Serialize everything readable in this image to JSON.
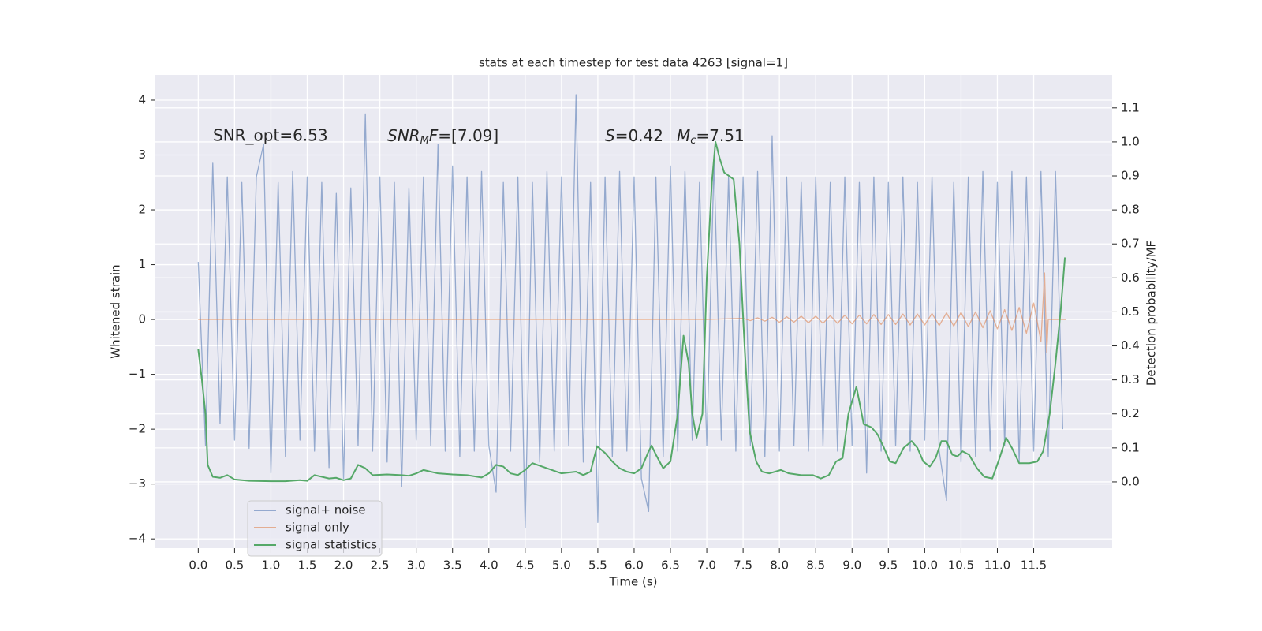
{
  "chart_data": {
    "type": "line",
    "title": "stats at each timestep for test data 4263 [signal=1]",
    "xlabel": "Time (s)",
    "ylabel": "Whitened strain",
    "y2label": "Detection probability/MF",
    "annotations": [
      "SNR_opt=6.53",
      [
        "SNR",
        "M",
        "F",
        "=[7.09]"
      ],
      [
        "S",
        "=0.42"
      ],
      [
        "M",
        "c",
        "=7.51"
      ]
    ],
    "xlim": [
      -0.59,
      12.58
    ],
    "ylim": [
      -4.17,
      4.46
    ],
    "y2lim": [
      -0.195,
      1.197
    ],
    "xticks": [
      {
        "value": 0,
        "label": "0.0"
      },
      0.5,
      {
        "value": 1,
        "label": "1.0"
      },
      1.5,
      {
        "value": 2,
        "label": "2.0"
      },
      2.5,
      {
        "value": 3,
        "label": "3.0"
      },
      3.5,
      {
        "value": 4,
        "label": "4.0"
      },
      4.5,
      {
        "value": 5,
        "label": "5.0"
      },
      5.5,
      {
        "value": 6,
        "label": "6.0"
      },
      6.5,
      {
        "value": 7,
        "label": "7.0"
      },
      7.5,
      {
        "value": 8,
        "label": "8.0"
      },
      8.5,
      {
        "value": 9,
        "label": "9.0"
      },
      9.5,
      {
        "value": 10,
        "label": "10.0"
      },
      10.5,
      {
        "value": 11,
        "label": "11.0"
      },
      11.5
    ],
    "yticks": [
      {
        "value": -4,
        "label": "−4"
      },
      {
        "value": -3,
        "label": "−3"
      },
      {
        "value": -2,
        "label": "−2"
      },
      {
        "value": -1,
        "label": "−1"
      },
      0,
      1,
      2,
      3,
      4
    ],
    "y2ticks": [
      {
        "value": 0,
        "label": "0.0"
      },
      0.1,
      0.2,
      0.3,
      0.4,
      0.5,
      0.6,
      0.7,
      0.8,
      0.9,
      {
        "value": 1,
        "label": "1.0"
      },
      1.1
    ],
    "grid": true,
    "legend": "lower left",
    "series": [
      {
        "name": "signal+ noise",
        "color": "#4c72b0",
        "x": [
          0.0,
          0.1,
          0.2,
          0.3,
          0.4,
          0.5,
          0.6,
          0.7,
          0.8,
          0.9,
          1.0,
          1.1,
          1.2,
          1.3,
          1.4,
          1.5,
          1.6,
          1.7,
          1.8,
          1.9,
          2.0,
          2.1,
          2.2,
          2.3,
          2.4,
          2.5,
          2.6,
          2.7,
          2.8,
          2.9,
          3.0,
          3.1,
          3.2,
          3.3,
          3.4,
          3.5,
          3.6,
          3.7,
          3.8,
          3.9,
          4.0,
          4.1,
          4.2,
          4.3,
          4.4,
          4.5,
          4.6,
          4.7,
          4.8,
          4.9,
          5.0,
          5.1,
          5.2,
          5.3,
          5.4,
          5.5,
          5.6,
          5.7,
          5.8,
          5.9,
          6.0,
          6.1,
          6.2,
          6.3,
          6.4,
          6.5,
          6.6,
          6.7,
          6.8,
          6.9,
          7.0,
          7.1,
          7.2,
          7.3,
          7.4,
          7.5,
          7.6,
          7.7,
          7.8,
          7.9,
          8.0,
          8.1,
          8.2,
          8.3,
          8.4,
          8.5,
          8.6,
          8.7,
          8.8,
          8.9,
          9.0,
          9.1,
          9.2,
          9.3,
          9.4,
          9.5,
          9.6,
          9.7,
          9.8,
          9.9,
          10.0,
          10.1,
          10.2,
          10.3,
          10.4,
          10.5,
          10.6,
          10.7,
          10.8,
          10.9,
          11.0,
          11.1,
          11.2,
          11.3,
          11.4,
          11.5,
          11.6,
          11.7,
          11.8,
          11.9
        ],
        "values": [
          1.05,
          -2.3,
          2.85,
          -1.9,
          2.6,
          -2.2,
          2.5,
          -2.35,
          2.6,
          3.2,
          -2.8,
          2.5,
          -2.5,
          2.7,
          -2.2,
          2.6,
          -2.4,
          2.5,
          -2.7,
          2.3,
          -2.9,
          2.4,
          -2.3,
          3.75,
          -2.4,
          2.6,
          -2.6,
          2.5,
          -3.05,
          2.4,
          -2.2,
          2.6,
          -2.3,
          3.2,
          -2.4,
          2.8,
          -2.5,
          2.6,
          -2.4,
          2.7,
          -2.3,
          -3.15,
          2.5,
          -2.4,
          2.6,
          -3.8,
          2.5,
          -2.6,
          2.7,
          -2.4,
          2.6,
          -2.3,
          4.1,
          -2.6,
          2.5,
          -3.7,
          2.6,
          -2.5,
          2.7,
          -2.4,
          2.6,
          -2.9,
          -3.5,
          2.6,
          -2.5,
          2.8,
          -2.4,
          2.7,
          -2.2,
          2.5,
          -2.3,
          2.9,
          -2.2,
          2.6,
          -2.4,
          2.6,
          -2.3,
          2.7,
          -2.5,
          3.35,
          -2.4,
          2.6,
          -2.3,
          2.5,
          -2.4,
          2.6,
          -2.3,
          2.5,
          -2.4,
          2.6,
          -2.3,
          2.5,
          -2.8,
          2.6,
          -2.4,
          2.5,
          -2.3,
          2.6,
          -2.4,
          2.5,
          -2.2,
          2.6,
          -2.4,
          -3.3,
          2.5,
          -2.6,
          2.6,
          -2.5,
          2.7,
          -2.4,
          2.5,
          -2.3,
          2.7,
          -2.6,
          2.6,
          -2.4,
          2.7,
          -2.5,
          2.7,
          -2.0
        ]
      },
      {
        "name": "signal only",
        "color": "#dd8452",
        "x": [
          0.0,
          7.0,
          7.5,
          7.6,
          7.7,
          7.8,
          7.9,
          8.0,
          8.1,
          8.2,
          8.3,
          8.4,
          8.5,
          8.6,
          8.7,
          8.8,
          8.9,
          9.0,
          9.1,
          9.2,
          9.3,
          9.4,
          9.5,
          9.6,
          9.7,
          9.8,
          9.9,
          10.0,
          10.1,
          10.2,
          10.3,
          10.4,
          10.5,
          10.6,
          10.7,
          10.8,
          10.9,
          11.0,
          11.1,
          11.2,
          11.3,
          11.4,
          11.5,
          11.6,
          11.65,
          11.68,
          11.7,
          11.95
        ],
        "values": [
          0,
          0,
          0.02,
          -0.02,
          0.03,
          -0.03,
          0.04,
          -0.05,
          0.05,
          -0.05,
          0.06,
          -0.06,
          0.06,
          -0.07,
          0.07,
          -0.07,
          0.08,
          -0.08,
          0.08,
          -0.08,
          0.09,
          -0.09,
          0.09,
          -0.09,
          0.1,
          -0.1,
          0.1,
          -0.1,
          0.11,
          -0.11,
          0.12,
          -0.12,
          0.13,
          -0.13,
          0.14,
          -0.15,
          0.16,
          -0.17,
          0.18,
          -0.2,
          0.22,
          -0.25,
          0.3,
          -0.4,
          0.85,
          -0.6,
          0,
          0
        ]
      },
      {
        "name": "signal statistics",
        "color": "#55a868",
        "axis": "y2",
        "x": [
          0,
          0.05,
          0.1,
          0.13,
          0.2,
          0.3,
          0.4,
          0.5,
          0.7,
          1.0,
          1.2,
          1.4,
          1.5,
          1.6,
          1.8,
          1.9,
          2.0,
          2.1,
          2.2,
          2.3,
          2.4,
          2.6,
          2.8,
          2.9,
          3.0,
          3.1,
          3.3,
          3.5,
          3.7,
          3.9,
          4.0,
          4.1,
          4.2,
          4.3,
          4.4,
          4.5,
          4.6,
          4.8,
          5.0,
          5.2,
          5.3,
          5.4,
          5.49,
          5.6,
          5.7,
          5.8,
          5.9,
          6.0,
          6.1,
          6.2,
          6.24,
          6.3,
          6.4,
          6.5,
          6.6,
          6.68,
          6.75,
          6.8,
          6.86,
          6.94,
          7.0,
          7.07,
          7.12,
          7.18,
          7.24,
          7.37,
          7.45,
          7.52,
          7.59,
          7.68,
          7.76,
          7.86,
          8.02,
          8.13,
          8.3,
          8.46,
          8.57,
          8.68,
          8.78,
          8.87,
          8.95,
          9.06,
          9.16,
          9.27,
          9.35,
          9.44,
          9.52,
          9.6,
          9.71,
          9.82,
          9.9,
          9.98,
          10.07,
          10.15,
          10.23,
          10.3,
          10.38,
          10.45,
          10.52,
          10.61,
          10.72,
          10.82,
          10.93,
          11.03,
          11.12,
          11.2,
          11.3,
          11.44,
          11.55,
          11.63,
          11.72,
          11.8,
          11.87,
          11.93
        ],
        "values": [
          0.39,
          0.3,
          0.2,
          0.05,
          0.015,
          0.012,
          0.02,
          0.007,
          0.003,
          0.002,
          0.002,
          0.005,
          0.003,
          0.02,
          0.01,
          0.012,
          0.005,
          0.01,
          0.05,
          0.04,
          0.02,
          0.022,
          0.02,
          0.018,
          0.025,
          0.035,
          0.025,
          0.022,
          0.02,
          0.013,
          0.025,
          0.05,
          0.045,
          0.025,
          0.02,
          0.035,
          0.055,
          0.04,
          0.025,
          0.03,
          0.02,
          0.03,
          0.105,
          0.085,
          0.06,
          0.04,
          0.03,
          0.025,
          0.04,
          0.09,
          0.107,
          0.08,
          0.04,
          0.06,
          0.2,
          0.43,
          0.35,
          0.2,
          0.13,
          0.2,
          0.6,
          0.88,
          1.0,
          0.95,
          0.91,
          0.89,
          0.7,
          0.4,
          0.15,
          0.06,
          0.03,
          0.025,
          0.035,
          0.025,
          0.02,
          0.02,
          0.01,
          0.02,
          0.06,
          0.07,
          0.2,
          0.28,
          0.17,
          0.16,
          0.14,
          0.1,
          0.06,
          0.055,
          0.1,
          0.12,
          0.1,
          0.06,
          0.045,
          0.07,
          0.12,
          0.12,
          0.08,
          0.075,
          0.09,
          0.08,
          0.04,
          0.015,
          0.01,
          0.07,
          0.13,
          0.1,
          0.055,
          0.055,
          0.06,
          0.09,
          0.2,
          0.35,
          0.5,
          0.66
        ]
      }
    ]
  }
}
